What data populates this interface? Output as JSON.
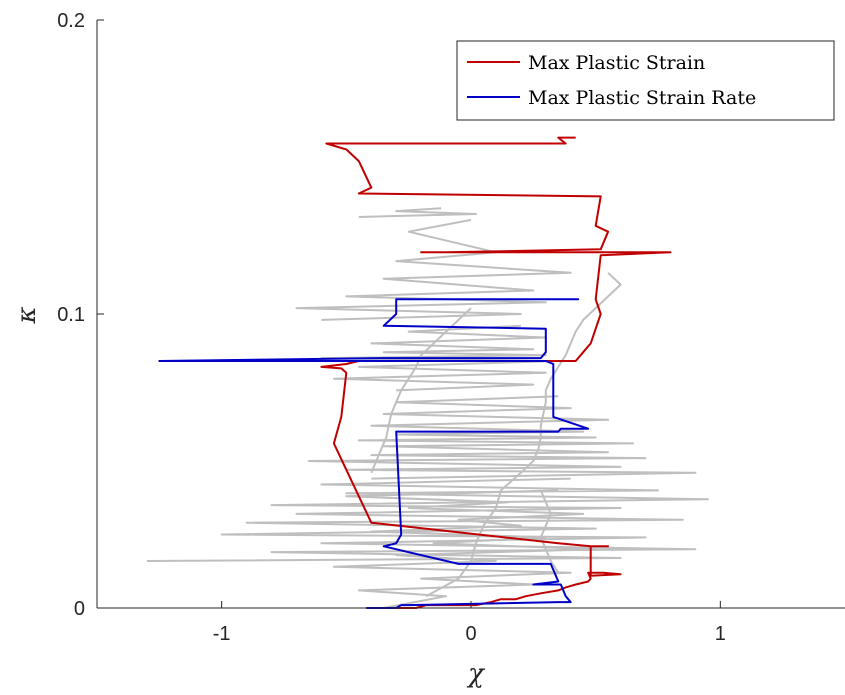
{
  "chart_data": {
    "type": "line",
    "title": "",
    "xlabel": "χ",
    "ylabel": "κ",
    "xlim": [
      -1.5,
      1.5
    ],
    "ylim": [
      0,
      0.2
    ],
    "xticks": [
      -1,
      0,
      1
    ],
    "xtick_labels": [
      "-1",
      "0",
      "1"
    ],
    "yticks": [
      0,
      0.1,
      0.2
    ],
    "ytick_labels": [
      "0",
      "0.1",
      "0.2"
    ],
    "grid": false,
    "legend_position": "top-right",
    "background_color": "#bfbfbf",
    "background_traces": [
      {
        "x": [
          -0.35,
          -0.1,
          -0.45,
          0.25,
          -0.2,
          0.4,
          -0.55,
          0.1,
          -0.3,
          0.5,
          -0.15,
          0.3,
          -0.4,
          0.2,
          -0.05,
          0.45,
          -0.25,
          0.15,
          -0.5,
          0.35
        ],
        "y": [
          0.0,
          0.004,
          0.006,
          0.008,
          0.01,
          0.012,
          0.014,
          0.016,
          0.018,
          0.02,
          0.022,
          0.024,
          0.026,
          0.028,
          0.03,
          0.032,
          0.034,
          0.036,
          0.038,
          0.04
        ]
      },
      {
        "x": [
          -1.3,
          0.6,
          -0.8,
          0.9,
          -0.6,
          0.7,
          -1.0,
          0.5,
          -0.9,
          0.85,
          -0.7,
          0.6,
          -0.8,
          0.95,
          -0.5,
          0.75,
          -0.6,
          0.4
        ],
        "y": [
          0.016,
          0.017,
          0.019,
          0.02,
          0.022,
          0.024,
          0.025,
          0.027,
          0.029,
          0.03,
          0.032,
          0.034,
          0.035,
          0.037,
          0.039,
          0.04,
          0.042,
          0.044
        ]
      },
      {
        "x": [
          -0.4,
          0.9,
          -0.5,
          0.6,
          -0.65,
          0.7,
          -0.4,
          0.55,
          -0.35,
          0.65,
          -0.45,
          0.5,
          -0.3,
          0.45,
          -0.4,
          0.55,
          -0.35,
          0.4,
          -0.3,
          0.35
        ],
        "y": [
          0.044,
          0.046,
          0.047,
          0.048,
          0.05,
          0.051,
          0.052,
          0.053,
          0.055,
          0.056,
          0.057,
          0.058,
          0.059,
          0.06,
          0.062,
          0.064,
          0.066,
          0.068,
          0.07,
          0.072
        ]
      },
      {
        "x": [
          -0.3,
          0.25,
          -0.55,
          0.3,
          -0.45,
          0.35,
          -0.6,
          0.3,
          -0.35,
          0.25,
          -0.4,
          0.3,
          -0.25,
          0.2
        ],
        "y": [
          0.074,
          0.076,
          0.078,
          0.08,
          0.082,
          0.084,
          0.085,
          0.086,
          0.087,
          0.088,
          0.09,
          0.092,
          0.094,
          0.096
        ]
      },
      {
        "x": [
          -0.6,
          0.2,
          -0.7,
          0.3,
          -0.5,
          0.25,
          -0.35,
          0.4,
          -0.3,
          0.1,
          -0.25,
          0.0
        ],
        "y": [
          0.098,
          0.1,
          0.102,
          0.104,
          0.106,
          0.108,
          0.112,
          0.114,
          0.118,
          0.121,
          0.128,
          0.132
        ]
      },
      {
        "x": [
          -0.45,
          0.02,
          -0.3,
          -0.12
        ],
        "y": [
          0.133,
          0.134,
          0.135,
          0.136
        ]
      },
      {
        "x": [
          -0.18,
          -0.05,
          0.0,
          0.02,
          0.05,
          0.1,
          0.12,
          0.2,
          0.25,
          0.27,
          0.28,
          0.28,
          0.29
        ],
        "y": [
          0.004,
          0.01,
          0.016,
          0.022,
          0.028,
          0.034,
          0.04,
          0.046,
          0.05,
          0.054,
          0.058,
          0.062,
          0.066
        ]
      },
      {
        "x": [
          0.29,
          0.3,
          0.3,
          0.32,
          0.35,
          0.38,
          0.4,
          0.42,
          0.45,
          0.5,
          0.55,
          0.6,
          0.55
        ],
        "y": [
          0.066,
          0.07,
          0.074,
          0.078,
          0.082,
          0.086,
          0.09,
          0.094,
          0.098,
          0.102,
          0.106,
          0.11,
          0.114
        ]
      },
      {
        "x": [
          -0.4,
          -0.38,
          -0.36,
          -0.34,
          -0.33,
          -0.32,
          -0.3,
          -0.28,
          -0.25,
          -0.22,
          -0.2,
          -0.15,
          -0.1,
          -0.05,
          0.0
        ],
        "y": [
          0.046,
          0.05,
          0.054,
          0.058,
          0.062,
          0.066,
          0.07,
          0.074,
          0.078,
          0.082,
          0.086,
          0.09,
          0.094,
          0.098,
          0.102
        ]
      },
      {
        "x": [
          0.28,
          0.3,
          0.32,
          0.3,
          0.28,
          0.3,
          0.32,
          0.35
        ],
        "y": [
          0.04,
          0.036,
          0.032,
          0.028,
          0.024,
          0.02,
          0.016,
          0.012
        ]
      }
    ],
    "series": [
      {
        "name": "Max Plastic Strain",
        "color": "#c00000",
        "x": [
          -0.42,
          -0.22,
          -0.2,
          -0.18,
          0.02,
          0.08,
          0.12,
          0.18,
          0.22,
          0.28,
          0.35,
          0.38,
          0.42,
          0.47,
          0.48,
          0.47,
          0.53,
          0.6,
          0.48,
          0.48,
          0.48,
          0.55,
          0.48,
          0.35,
          -0.4,
          -0.55,
          -0.52,
          -0.5,
          -0.52,
          -0.6,
          -0.5,
          -0.45,
          0.25,
          0.42,
          0.45,
          0.48,
          0.5,
          0.52,
          0.5,
          0.52,
          0.8,
          -0.2,
          -0.1,
          0.52,
          0.55,
          0.5,
          0.52,
          -0.45,
          -0.4,
          -0.45,
          -0.5,
          -0.58,
          -0.58,
          0.38,
          0.35,
          0.42
        ],
        "y": [
          0.0,
          0.0,
          0.0005,
          0.001,
          0.001,
          0.002,
          0.003,
          0.003,
          0.004,
          0.005,
          0.006,
          0.007,
          0.008,
          0.009,
          0.01,
          0.012,
          0.012,
          0.0115,
          0.011,
          0.016,
          0.021,
          0.021,
          0.021,
          0.022,
          0.029,
          0.056,
          0.065,
          0.08,
          0.0815,
          0.082,
          0.083,
          0.084,
          0.084,
          0.084,
          0.087,
          0.09,
          0.095,
          0.1,
          0.105,
          0.12,
          0.121,
          0.121,
          0.121,
          0.122,
          0.128,
          0.13,
          0.14,
          0.141,
          0.143,
          0.152,
          0.156,
          0.158,
          0.158,
          0.158,
          0.16,
          0.16
        ]
      },
      {
        "name": "Max Plastic Strain Rate",
        "color": "#0000c8",
        "x": [
          -0.42,
          -0.4,
          -0.3,
          -0.28,
          -0.25,
          0.35,
          0.4,
          0.38,
          0.37,
          0.36,
          0.35,
          0.25,
          0.35,
          0.32,
          -0.05,
          -0.35,
          -0.3,
          -0.28,
          -0.3,
          -0.3,
          0.35,
          0.36,
          0.36,
          0.4,
          0.47,
          0.33,
          0.33,
          0.33,
          0.3,
          -1.25,
          -0.35,
          0.28,
          0.3,
          0.3,
          0.3,
          0.3,
          -0.35,
          -0.35,
          -0.3,
          -0.3,
          0.42,
          0.43,
          0.43,
          -0.3
        ],
        "y": [
          0.0,
          0.0,
          0.0,
          0.001,
          0.001,
          0.002,
          0.002,
          0.004,
          0.006,
          0.008,
          0.008,
          0.008,
          0.009,
          0.015,
          0.015,
          0.021,
          0.022,
          0.025,
          0.06,
          0.06,
          0.06,
          0.061,
          0.061,
          0.061,
          0.061,
          0.065,
          0.08,
          0.083,
          0.084,
          0.084,
          0.085,
          0.085,
          0.087,
          0.09,
          0.095,
          0.095,
          0.096,
          0.096,
          0.1,
          0.105,
          0.105,
          0.105,
          0.105,
          0.105
        ]
      }
    ]
  }
}
